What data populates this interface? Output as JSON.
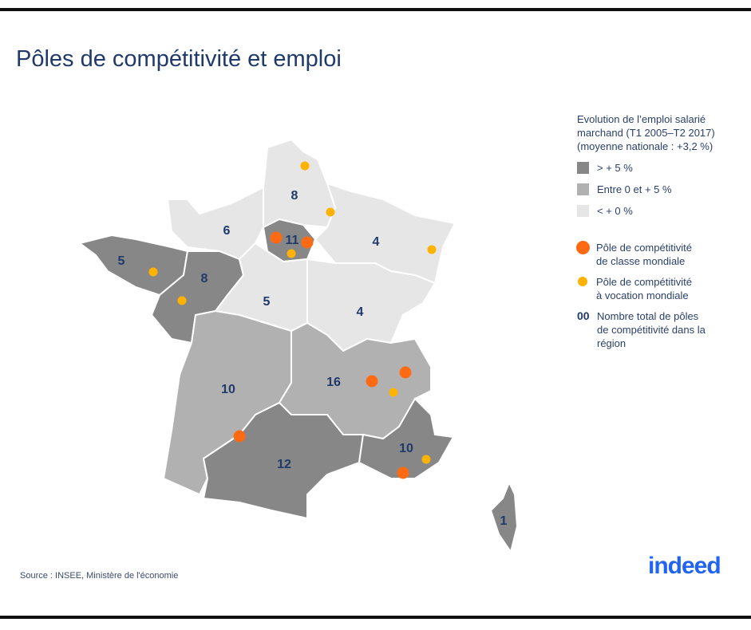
{
  "title": "Pôles de compétitivité et emploi",
  "legend": {
    "heading": "Evolution de l’emploi salarié marchand (T1 2005–T2 2017) (moyenne nationale : +3,2 %)",
    "classes": [
      {
        "label": "> + 5 %",
        "color": "#878787"
      },
      {
        "label": "Entre 0 et + 5 %",
        "color": "#b1b1b1"
      },
      {
        "label": "< + 0 %",
        "color": "#e6e6e6"
      }
    ],
    "world_class": {
      "label": "Pôle de compétitivité de classe mondiale",
      "color": "#ff6a13"
    },
    "world_vocation": {
      "label": "Pôle de compétitivité à vocation mondiale",
      "color": "#ffb300"
    },
    "count_symbol": "00",
    "count_label": "Nombre total de pôles de compétitivité  dans la région"
  },
  "regions": [
    {
      "count": "8",
      "class": 2
    },
    {
      "count": "6",
      "class": 2
    },
    {
      "count": "11",
      "class": 0
    },
    {
      "count": "4",
      "class": 2
    },
    {
      "count": "5",
      "class": 0
    },
    {
      "count": "8",
      "class": 0
    },
    {
      "count": "5",
      "class": 2
    },
    {
      "count": "4",
      "class": 2
    },
    {
      "count": "10",
      "class": 1
    },
    {
      "count": "16",
      "class": 1
    },
    {
      "count": "12",
      "class": 0
    },
    {
      "count": "10",
      "class": 0
    },
    {
      "count": "1",
      "class": 0
    }
  ],
  "source": "Source : INSEE, Ministère de l'économie",
  "logo": "indeed"
}
